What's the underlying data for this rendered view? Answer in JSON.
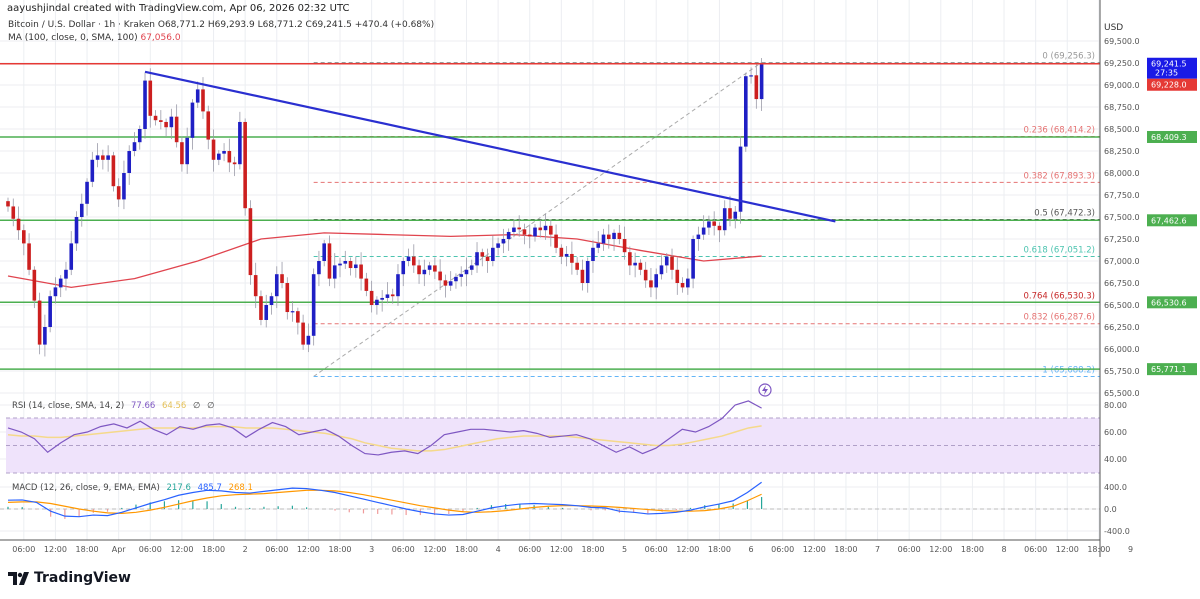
{
  "credit": "aayushjindal created with TradingView.com, Apr 06, 2026 02:32 UTC",
  "legend": {
    "symbol_line": "Bitcoin / U.S. Dollar · 1h · Kraken  O68,771.2  H69,293.9  L68,771.2  C69,241.5  +470.4 (+0.68%)",
    "ma_label": "MA (100, close, 0, SMA, 100)",
    "ma_value": "67,056.0"
  },
  "logo_text": "TradingView",
  "colors": {
    "up": "#1f1fc4",
    "down": "#cc1f1f",
    "ma": "#e0444e",
    "support": "#4caf50",
    "resistance": "#e53935",
    "trendline": "#2a2fd0",
    "rsi": "#7e57c2",
    "rsi_ma": "#f5d98a",
    "macd": "#2962ff",
    "signal": "#ff9800",
    "hist": "#26a69a"
  },
  "chart_data": [
    {
      "type": "candlestick",
      "title": "Bitcoin / U.S. Dollar · 1h · Kraken",
      "currency_label": "USD",
      "interval_hours": 1,
      "first_candle": "Mar 31 03:00",
      "closes": [
        67620,
        67480,
        67350,
        67200,
        66900,
        66550,
        66050,
        66250,
        66600,
        66700,
        66800,
        66900,
        67200,
        67500,
        67650,
        67900,
        68150,
        68200,
        68150,
        68200,
        67850,
        67700,
        68000,
        68250,
        68350,
        68500,
        69050,
        68650,
        68600,
        68580,
        68520,
        68640,
        68350,
        68100,
        68400,
        68800,
        68950,
        68700,
        68380,
        68150,
        68220,
        68250,
        68120,
        68100,
        68580,
        67600,
        66840,
        66600,
        66330,
        66500,
        66600,
        66850,
        66750,
        66420,
        66430,
        66300,
        66050,
        66150,
        66850,
        67000,
        67200,
        66800,
        66950,
        66970,
        67000,
        66920,
        66960,
        66800,
        66660,
        66500,
        66560,
        66580,
        66620,
        66600,
        66850,
        67000,
        67050,
        66950,
        66850,
        66900,
        66950,
        66880,
        66780,
        66720,
        66770,
        66820,
        66850,
        66900,
        66950,
        67100,
        67050,
        67000,
        67150,
        67200,
        67250,
        67330,
        67380,
        67360,
        67300,
        67280,
        67380,
        67350,
        67400,
        67300,
        67150,
        67050,
        67080,
        66980,
        66900,
        66750,
        67000,
        67150,
        67200,
        67300,
        67250,
        67320,
        67250,
        67100,
        66950,
        66980,
        66900,
        66780,
        66700,
        66850,
        66950,
        67050,
        66900,
        66750,
        66700,
        66800,
        67250,
        67300,
        67380,
        67450,
        67400,
        67350,
        67600,
        67480,
        67560,
        68300,
        69100,
        69110,
        68840,
        69241.5
      ],
      "ma100_every_12h": [
        66830,
        66700,
        66800,
        67000,
        67250,
        67320,
        67300,
        67280,
        67300,
        67250,
        67120,
        67000,
        67056
      ],
      "yaxis_ticks": [
        "69,500.0",
        "69,250.0",
        "69,000.0",
        "68,750.0",
        "68,500.0",
        "68,250.0",
        "68,000.0",
        "67,750.0",
        "67,500.0",
        "67,250.0",
        "67,000.0",
        "66,750.0",
        "66,500.0",
        "66,250.0",
        "66,000.0",
        "65,750.0",
        "65,500.0"
      ],
      "ylim": [
        65500,
        69500
      ],
      "last_price": {
        "price": "69,241.5",
        "countdown": "27:35",
        "value": 69241.5
      },
      "prev_badge": {
        "label": "69,228.0"
      },
      "horizontal_lines": [
        {
          "value": 68409.3,
          "label": "68,409.3",
          "kind": "support"
        },
        {
          "value": 67462.6,
          "label": "67,462.6",
          "kind": "support"
        },
        {
          "value": 66530.6,
          "label": "66,530.6",
          "kind": "support"
        },
        {
          "value": 65771.1,
          "label": "65,771.1",
          "kind": "support"
        }
      ],
      "trendline": {
        "from": {
          "candle": 26,
          "price": 69150
        },
        "to": {
          "candle": 157,
          "price": 67450
        }
      },
      "fibonacci": {
        "from": {
          "candle": 58,
          "price": 65688.2
        },
        "to": {
          "candle": 143,
          "price": 69256.3
        },
        "levels": [
          {
            "ratio": "0",
            "value": 69256.3,
            "label": "0 (69,256.3)",
            "color": "#999999"
          },
          {
            "ratio": "0.236",
            "value": 68414.2,
            "label": "0.236 (68,414.2)",
            "color": "#e57373"
          },
          {
            "ratio": "0.382",
            "value": 67893.3,
            "label": "0.382 (67,893.3)",
            "color": "#e57373"
          },
          {
            "ratio": "0.5",
            "value": 67472.3,
            "label": "0.5 (67,472.3)",
            "color": "#555555"
          },
          {
            "ratio": "0.618",
            "value": 67051.2,
            "label": "0.618 (67,051.2)",
            "color": "#4dc4b0"
          },
          {
            "ratio": "0.764",
            "value": 66530.3,
            "label": "0.764 (66,530.3)",
            "color": "#c62828"
          },
          {
            "ratio": "0.832",
            "value": 66287.6,
            "label": "0.832 (66,287.6)",
            "color": "#e57373"
          },
          {
            "ratio": "1",
            "value": 65688.2,
            "label": "1 (65,688.2)",
            "color": "#64b5f6"
          }
        ]
      },
      "x_tick_labels": [
        "06:00",
        "12:00",
        "18:00",
        "Apr",
        "06:00",
        "12:00",
        "18:00",
        "2",
        "06:00",
        "12:00",
        "18:00",
        "3",
        "06:00",
        "12:00",
        "18:00",
        "4",
        "06:00",
        "12:00",
        "18:00",
        "5",
        "06:00",
        "12:00",
        "18:00",
        "6",
        "06:00",
        "12:00",
        "18:00",
        "7",
        "06:00",
        "12:00",
        "18:00",
        "8",
        "06:00",
        "12:00",
        "18:00",
        "9"
      ]
    },
    {
      "type": "line",
      "title": "RSI (14, close, SMA, 14, 2)",
      "value_label": "77.66",
      "ma_label": "64.56",
      "extra_labels": [
        "∅",
        "∅"
      ],
      "rsi_every_2_5h": [
        63,
        60,
        55,
        45,
        52,
        58,
        60,
        64,
        66,
        63,
        68,
        62,
        58,
        64,
        62,
        65,
        66,
        63,
        56,
        62,
        67,
        64,
        58,
        60,
        62,
        57,
        50,
        44,
        43,
        45,
        46,
        44,
        50,
        58,
        60,
        62,
        62,
        61,
        60,
        61,
        59,
        56,
        57,
        58,
        55,
        50,
        45,
        49,
        44,
        48,
        55,
        62,
        60,
        64,
        70,
        80,
        83,
        77.66
      ],
      "rsi_ma": [
        58,
        57,
        57,
        56,
        56,
        57,
        58,
        59,
        60,
        61,
        62,
        63,
        63,
        63,
        63,
        64,
        64,
        64,
        63,
        63,
        63,
        62,
        61,
        60,
        59,
        57,
        55,
        52,
        50,
        48,
        47,
        46,
        46,
        47,
        49,
        51,
        53,
        55,
        56,
        57,
        57,
        57,
        57,
        56,
        55,
        54,
        53,
        52,
        51,
        50,
        50,
        51,
        53,
        55,
        57,
        60,
        63,
        64.56
      ],
      "band": [
        30,
        70
      ],
      "yaxis_ticks": [
        "80.00",
        "60.00",
        "40.00"
      ]
    },
    {
      "type": "line",
      "title": "MACD (12, 26, close, 9, EMA, EMA)",
      "hist_label": "217.6",
      "macd_label": "485.7",
      "signal_label": "268.1",
      "macd": [
        160,
        165,
        120,
        -40,
        -130,
        -140,
        -110,
        -120,
        -60,
        20,
        100,
        170,
        250,
        300,
        340,
        330,
        300,
        290,
        320,
        350,
        380,
        370,
        340,
        300,
        240,
        180,
        120,
        60,
        0,
        -50,
        -90,
        -110,
        -100,
        -40,
        20,
        60,
        90,
        100,
        90,
        80,
        60,
        30,
        20,
        -40,
        -60,
        -90,
        -80,
        -60,
        -20,
        40,
        90,
        150,
        300,
        485.7
      ],
      "signal": [
        120,
        130,
        130,
        100,
        50,
        0,
        -40,
        -70,
        -80,
        -60,
        -20,
        30,
        90,
        150,
        200,
        240,
        260,
        270,
        280,
        300,
        320,
        340,
        340,
        330,
        300,
        260,
        210,
        160,
        110,
        60,
        20,
        -20,
        -50,
        -60,
        -50,
        -30,
        0,
        30,
        50,
        60,
        60,
        55,
        45,
        30,
        10,
        -10,
        -30,
        -40,
        -40,
        -30,
        0,
        50,
        150,
        268.1
      ],
      "yaxis_ticks": [
        "400.0",
        "0.0",
        "-400.0"
      ]
    }
  ]
}
